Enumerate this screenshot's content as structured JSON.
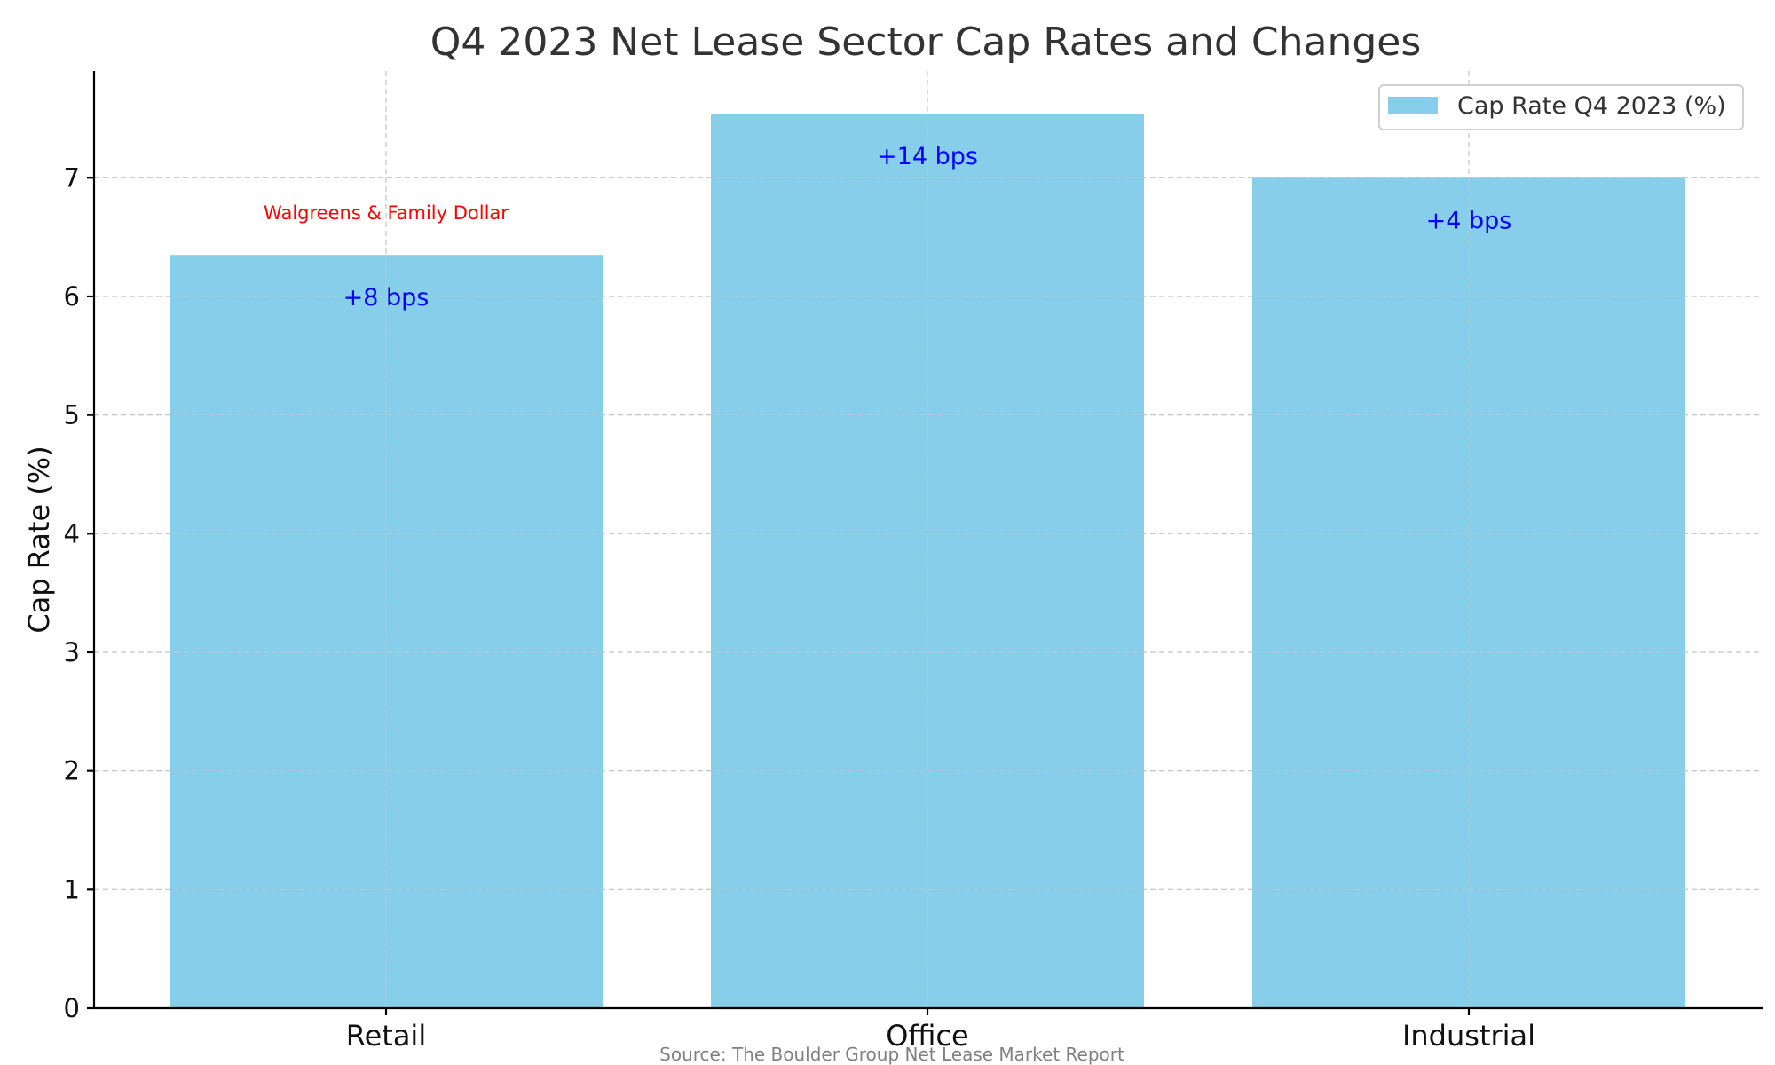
{
  "chart_data": {
    "type": "bar",
    "title": "Q4 2023 Net Lease Sector Cap Rates and Changes",
    "xlabel": "",
    "ylabel": "Cap Rate (%)",
    "categories": [
      "Retail",
      "Office",
      "Industrial"
    ],
    "series": [
      {
        "name": "Cap Rate Q4 2023 (%)",
        "values": [
          6.35,
          7.54,
          7.0
        ]
      }
    ],
    "annotations": [
      "+8 bps",
      "+14 bps",
      "+4 bps"
    ],
    "notes": [
      {
        "category": "Retail",
        "text": "Walgreens & Family Dollar"
      }
    ],
    "ylim": [
      0,
      7.9
    ],
    "yticks": [
      0,
      1,
      2,
      3,
      4,
      5,
      6,
      7
    ],
    "grid": true,
    "legend_position": "top-right",
    "source": "Source: The Boulder Group Net Lease Market Report"
  },
  "colors": {
    "bar": "#87CEEB",
    "annotation": "#0000FF",
    "note": "#FF0000"
  }
}
